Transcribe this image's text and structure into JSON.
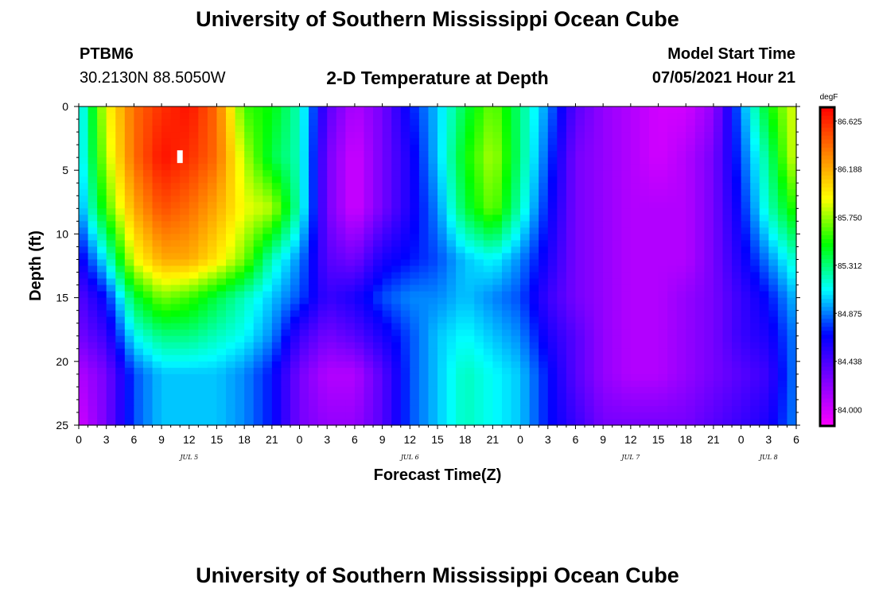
{
  "header": {
    "title": "University of Southern Mississippi Ocean Cube",
    "station": "PTBM6",
    "coordinates": "30.2130N  88.5050W",
    "plot_title": "2-D Temperature at Depth",
    "model_start_label": "Model Start Time",
    "model_start_value": "07/05/2021 Hour 21"
  },
  "footer": {
    "title": "University of Southern Mississippi Ocean Cube"
  },
  "colors": {
    "scale": [
      "#ff00ff",
      "#8000ff",
      "#0000ff",
      "#00ffff",
      "#00ff00",
      "#ffff00",
      "#ff8000",
      "#ff0000"
    ],
    "marker": "#ffffff"
  },
  "chart_data": {
    "type": "heatmap",
    "xlabel": "Forecast Time(Z)",
    "ylabel": "Depth (ft)",
    "x_range_hours": [
      0,
      78
    ],
    "y_range_ft": [
      0,
      25
    ],
    "x_tick_labels": [
      "0",
      "3",
      "6",
      "9",
      "12",
      "15",
      "18",
      "21",
      "0",
      "3",
      "6",
      "9",
      "12",
      "15",
      "18",
      "21",
      "0",
      "3",
      "6",
      "9",
      "12",
      "15",
      "18",
      "21",
      "0",
      "3",
      "6"
    ],
    "y_tick_labels": [
      "0",
      "5",
      "10",
      "15",
      "20",
      "25"
    ],
    "day_labels": [
      {
        "text": "JUL 5",
        "hour": 12
      },
      {
        "text": "JUL 6",
        "hour": 36
      },
      {
        "text": "JUL 7",
        "hour": 60
      },
      {
        "text": "JUL 8",
        "hour": 75
      }
    ],
    "colorbar": {
      "unit": "degF",
      "min": 83.85,
      "max": 86.75,
      "ticks": [
        "86.625",
        "86.188",
        "85.750",
        "85.312",
        "84.875",
        "84.438",
        "84.000"
      ]
    },
    "marker": {
      "hour": 11,
      "depth_ft": 4
    },
    "depth_levels_ft": [
      0,
      4,
      8,
      12,
      15,
      18,
      21,
      25
    ],
    "time_hours": [
      0,
      3,
      6,
      9,
      12,
      15,
      18,
      21,
      24,
      27,
      30,
      33,
      36,
      39,
      42,
      45,
      48,
      51,
      54,
      57,
      60,
      63,
      66,
      69,
      72,
      75,
      78
    ],
    "temperature_degF": [
      [
        85.0,
        85.9,
        86.4,
        86.6,
        86.7,
        86.4,
        85.6,
        85.5,
        85.2,
        84.4,
        84.1,
        84.3,
        84.7,
        85.0,
        85.4,
        85.7,
        85.3,
        84.9,
        84.4,
        84.2,
        84.1,
        84.0,
        84.0,
        84.2,
        84.9,
        85.5,
        85.9
      ],
      [
        85.0,
        85.8,
        86.4,
        86.7,
        86.6,
        86.4,
        85.8,
        85.4,
        85.2,
        84.3,
        84.0,
        84.3,
        84.6,
        85.0,
        85.5,
        85.8,
        85.3,
        84.8,
        84.3,
        84.2,
        84.1,
        84.0,
        84.1,
        84.3,
        84.8,
        85.3,
        85.9
      ],
      [
        84.9,
        85.6,
        86.2,
        86.5,
        86.4,
        86.2,
        85.9,
        85.8,
        85.2,
        84.3,
        84.0,
        84.3,
        84.6,
        84.9,
        85.4,
        85.7,
        85.2,
        84.7,
        84.3,
        84.2,
        84.1,
        84.1,
        84.1,
        84.3,
        84.7,
        85.2,
        85.6
      ],
      [
        84.6,
        85.1,
        85.9,
        86.2,
        86.2,
        86.0,
        85.7,
        85.2,
        84.9,
        84.4,
        84.3,
        84.6,
        84.7,
        84.8,
        85.0,
        85.1,
        84.9,
        84.6,
        84.3,
        84.2,
        84.1,
        84.1,
        84.1,
        84.3,
        84.6,
        84.9,
        85.2
      ],
      [
        84.4,
        84.7,
        85.4,
        85.7,
        85.6,
        85.4,
        85.2,
        85.0,
        84.8,
        84.5,
        84.6,
        84.8,
        84.9,
        84.9,
        85.0,
        84.9,
        84.8,
        84.5,
        84.3,
        84.2,
        84.1,
        84.1,
        84.2,
        84.3,
        84.5,
        84.7,
        85.0
      ],
      [
        84.3,
        84.5,
        85.1,
        85.3,
        85.3,
        85.2,
        85.1,
        84.9,
        84.5,
        84.3,
        84.4,
        84.6,
        84.8,
        85.0,
        85.1,
        85.0,
        84.9,
        84.6,
        84.4,
        84.2,
        84.1,
        84.1,
        84.2,
        84.3,
        84.5,
        84.6,
        84.9
      ],
      [
        84.1,
        84.3,
        84.8,
        85.0,
        85.0,
        85.0,
        84.9,
        84.7,
        84.3,
        84.1,
        84.1,
        84.4,
        84.8,
        85.0,
        85.2,
        85.1,
        85.0,
        84.7,
        84.4,
        84.2,
        84.1,
        84.1,
        84.2,
        84.3,
        84.4,
        84.5,
        84.9
      ],
      [
        84.0,
        84.3,
        84.8,
        85.0,
        85.0,
        85.0,
        84.9,
        84.7,
        84.3,
        84.2,
        84.2,
        84.4,
        84.8,
        85.0,
        85.2,
        85.1,
        85.0,
        84.7,
        84.5,
        84.3,
        84.3,
        84.3,
        84.3,
        84.4,
        84.5,
        84.6,
        84.9
      ]
    ]
  }
}
